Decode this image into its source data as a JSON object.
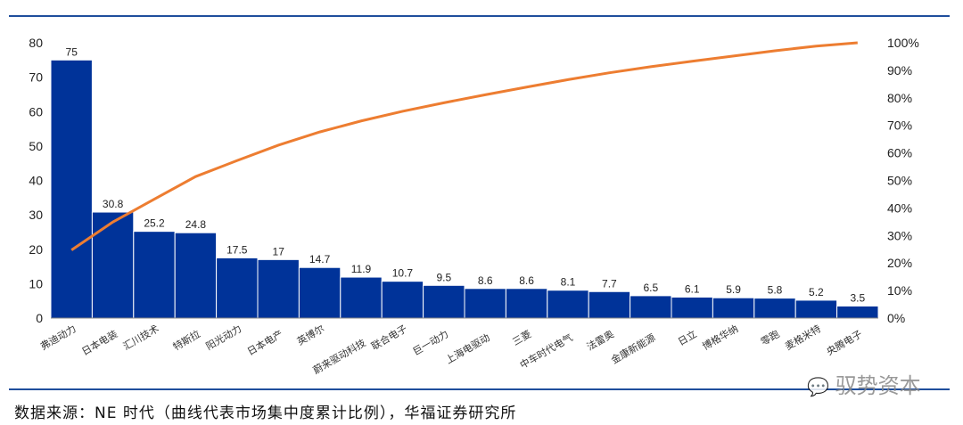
{
  "chart_data": {
    "type": "bar+line",
    "categories": [
      "弗迪动力",
      "日本电装",
      "汇川技术",
      "特斯拉",
      "阳光动力",
      "日本电产",
      "英博尔",
      "蔚来驱动科技",
      "联合电子",
      "巨一动力",
      "上海电驱动",
      "三菱",
      "中车时代电气",
      "法雷奥",
      "金康新能源",
      "日立",
      "博格华纳",
      "零跑",
      "麦格米特",
      "央腾电子"
    ],
    "series": [
      {
        "type": "bar",
        "axis": "left",
        "color": "#003399",
        "values": [
          75,
          30.8,
          25.2,
          24.8,
          17.5,
          17,
          14.7,
          11.9,
          10.7,
          9.5,
          8.6,
          8.6,
          8.1,
          7.7,
          6.5,
          6.1,
          5.9,
          5.8,
          5.2,
          3.5
        ]
      },
      {
        "type": "line",
        "axis": "right",
        "color": "#ed7d31",
        "values": [
          24.7,
          34.9,
          43.2,
          51.4,
          57.2,
          62.8,
          67.6,
          71.6,
          75.1,
          78.2,
          81.1,
          83.9,
          86.6,
          89.1,
          91.3,
          93.3,
          95.2,
          97.1,
          98.8,
          100
        ]
      }
    ],
    "data_labels": [
      "75",
      "30.8",
      "25.2",
      "24.8",
      "17.5",
      "17",
      "14.7",
      "11.9",
      "10.7",
      "9.5",
      "8.6",
      "8.6",
      "8.1",
      "7.7",
      "6.5",
      "6.1",
      "5.9",
      "5.8",
      "5.2",
      "3.5"
    ],
    "ylim": [
      0,
      80
    ],
    "yticks": [
      "0",
      "10",
      "20",
      "30",
      "40",
      "50",
      "60",
      "70",
      "80"
    ],
    "y2lim": [
      0,
      100
    ],
    "y2ticks": [
      "0%",
      "10%",
      "20%",
      "30%",
      "40%",
      "50%",
      "60%",
      "70%",
      "80%",
      "90%",
      "100%"
    ],
    "grid": false,
    "legend": "none"
  },
  "source": "数据来源：NE 时代（曲线代表市场集中度累计比例），华福证券研究所",
  "watermark": "驭势资本"
}
